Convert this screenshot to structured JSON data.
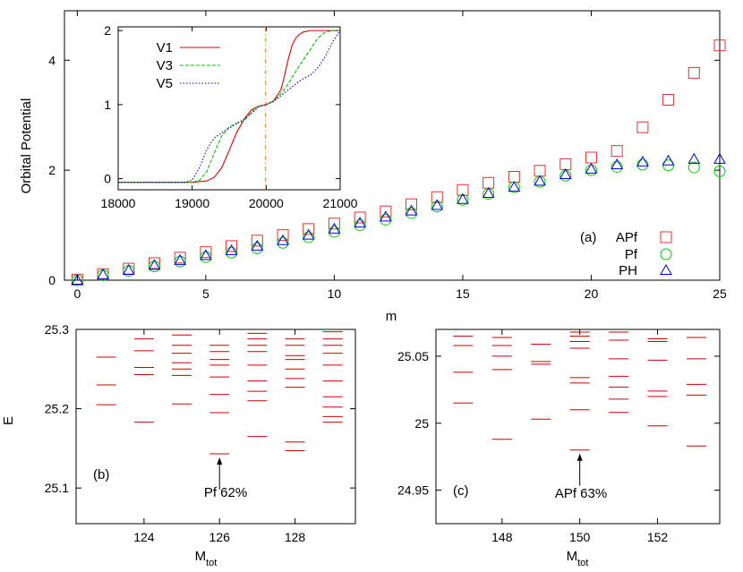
{
  "colors": {
    "APf": "#e8302f",
    "Pf": "#00cc00",
    "PH": "#0000dd",
    "V1": "#e00000",
    "V3": "#00c000",
    "V5": "#0000cc",
    "level": "#cc0000",
    "vline": "#ff8844"
  },
  "chart_data": [
    {
      "id": "main",
      "type": "scatter",
      "xlabel": "m",
      "ylabel": "Orbital Potential",
      "xlim": [
        -0.5,
        25
      ],
      "ylim": [
        0,
        4.9
      ],
      "xticks": [
        0,
        5,
        10,
        15,
        20,
        25
      ],
      "yticks": [
        0,
        2,
        4
      ],
      "annotation": "(a)",
      "legend_position": "bottom-right",
      "x": [
        0,
        1,
        2,
        3,
        4,
        5,
        6,
        7,
        8,
        9,
        10,
        11,
        12,
        13,
        14,
        15,
        16,
        17,
        18,
        19,
        20,
        21,
        22,
        23,
        24,
        25
      ],
      "series": [
        {
          "name": "APf",
          "marker": "square",
          "values": [
            0.01,
            0.11,
            0.21,
            0.31,
            0.41,
            0.51,
            0.62,
            0.72,
            0.82,
            0.93,
            1.03,
            1.14,
            1.25,
            1.38,
            1.51,
            1.64,
            1.77,
            1.88,
            1.99,
            2.11,
            2.23,
            2.35,
            2.78,
            3.28,
            3.77,
            4.27
          ]
        },
        {
          "name": "Pf",
          "marker": "circle",
          "values": [
            0.0,
            0.09,
            0.17,
            0.25,
            0.34,
            0.42,
            0.5,
            0.58,
            0.68,
            0.78,
            0.88,
            1.0,
            1.1,
            1.22,
            1.34,
            1.46,
            1.57,
            1.69,
            1.79,
            1.9,
            2.0,
            2.06,
            2.1,
            2.09,
            2.05,
            1.98
          ]
        },
        {
          "name": "PH",
          "marker": "triangle",
          "values": [
            0.0,
            0.1,
            0.18,
            0.27,
            0.36,
            0.45,
            0.54,
            0.62,
            0.72,
            0.82,
            0.93,
            1.04,
            1.15,
            1.26,
            1.36,
            1.47,
            1.58,
            1.69,
            1.8,
            1.92,
            2.02,
            2.1,
            2.15,
            2.17,
            2.2,
            2.2
          ]
        }
      ]
    },
    {
      "id": "inset",
      "type": "line",
      "xlim": [
        18000,
        21000
      ],
      "ylim": [
        -0.15,
        2.05
      ],
      "xticks": [
        18000,
        19000,
        20000,
        21000
      ],
      "yticks": [
        0,
        1,
        2
      ],
      "vline_x": 19990,
      "legend_position": "top-left",
      "series": [
        {
          "name": "V1",
          "dash": "solid",
          "x": [
            18000,
            19000,
            19200,
            19300,
            19400,
            19500,
            19600,
            19700,
            19800,
            19900,
            20000,
            20100,
            20200,
            20250,
            20300,
            20350,
            20400,
            20450,
            20500,
            20600,
            20700,
            20800,
            20900,
            21000
          ],
          "y": [
            -0.05,
            -0.05,
            -0.03,
            0.02,
            0.15,
            0.38,
            0.62,
            0.8,
            0.93,
            0.98,
            1.0,
            1.05,
            1.2,
            1.4,
            1.62,
            1.8,
            1.9,
            1.95,
            1.98,
            2.0,
            2.0,
            2.0,
            2.0,
            2.0
          ]
        },
        {
          "name": "V3",
          "dash": "dashed",
          "x": [
            18000,
            19000,
            19100,
            19200,
            19300,
            19400,
            19500,
            19600,
            19700,
            19800,
            19900,
            20000,
            20100,
            20200,
            20300,
            20400,
            20500,
            20600,
            20700,
            20800,
            20900,
            21000
          ],
          "y": [
            -0.05,
            -0.05,
            -0.02,
            0.1,
            0.35,
            0.58,
            0.7,
            0.74,
            0.78,
            0.9,
            0.98,
            1.0,
            1.05,
            1.15,
            1.28,
            1.45,
            1.6,
            1.75,
            1.9,
            1.98,
            2.0,
            2.0
          ]
        },
        {
          "name": "V5",
          "dash": "dotted",
          "x": [
            18000,
            18900,
            19000,
            19100,
            19200,
            19300,
            19400,
            19500,
            19600,
            19700,
            19800,
            19900,
            20000,
            20100,
            20200,
            20300,
            20400,
            20500,
            20600,
            20700,
            20800,
            20900,
            21000
          ],
          "y": [
            -0.05,
            -0.05,
            -0.02,
            0.15,
            0.4,
            0.55,
            0.62,
            0.68,
            0.75,
            0.8,
            0.88,
            0.97,
            1.0,
            1.04,
            1.12,
            1.2,
            1.28,
            1.35,
            1.4,
            1.5,
            1.65,
            1.85,
            2.0
          ]
        }
      ]
    },
    {
      "id": "b",
      "type": "scatter",
      "xlabel": "M",
      "xlabel_sub": "tot",
      "ylabel": "E",
      "xlim": [
        122.2,
        129.6
      ],
      "ylim": [
        25.055,
        25.3
      ],
      "xticks": [
        124,
        126,
        128
      ],
      "yticks": [
        25.1,
        25.2,
        25.3
      ],
      "annotation": "(b)",
      "arrow_label": "Pf 62%",
      "arrow_x": 126,
      "arrow_y": 25.143,
      "levels": [
        {
          "x": 123,
          "E": [
            25.205,
            25.23,
            25.265
          ]
        },
        {
          "x": 124,
          "E": [
            25.183,
            25.243,
            25.252,
            25.273,
            25.288
          ]
        },
        {
          "x": 125,
          "E": [
            25.206,
            25.242,
            25.25,
            25.258,
            25.27,
            25.28,
            25.293
          ]
        },
        {
          "x": 126,
          "E": [
            25.143,
            25.195,
            25.218,
            25.24,
            25.255,
            25.262,
            25.272,
            25.28
          ]
        },
        {
          "x": 127,
          "E": [
            25.165,
            25.21,
            25.222,
            25.235,
            25.255,
            25.272,
            25.28,
            25.288,
            25.295
          ]
        },
        {
          "x": 128,
          "E": [
            25.147,
            25.158,
            25.227,
            25.238,
            25.25,
            25.262,
            25.267,
            25.28,
            25.288
          ]
        },
        {
          "x": 129,
          "E": [
            25.183,
            25.19,
            25.202,
            25.215,
            25.235,
            25.255,
            25.27,
            25.28,
            25.288,
            25.297
          ]
        }
      ]
    },
    {
      "id": "c",
      "type": "scatter",
      "xlabel": "M",
      "xlabel_sub": "tot",
      "ylabel": "",
      "xlim": [
        146.3,
        153.6
      ],
      "ylim": [
        24.925,
        25.07
      ],
      "xticks": [
        148,
        150,
        152
      ],
      "yticks": [
        24.95,
        25,
        25.05
      ],
      "annotation": "(c)",
      "arrow_label": "APf 63%",
      "arrow_x": 150,
      "arrow_y": 24.98,
      "levels": [
        {
          "x": 147,
          "E": [
            25.015,
            25.038,
            25.058,
            25.065
          ]
        },
        {
          "x": 148,
          "E": [
            24.988,
            25.04,
            25.05,
            25.058,
            25.064
          ]
        },
        {
          "x": 149,
          "E": [
            25.003,
            25.044,
            25.046,
            25.059
          ]
        },
        {
          "x": 150,
          "E": [
            24.98,
            25.01,
            25.03,
            25.034,
            25.056,
            25.061,
            25.065,
            25.068
          ]
        },
        {
          "x": 151,
          "E": [
            25.008,
            25.018,
            25.027,
            25.035,
            25.048,
            25.062,
            25.068
          ]
        },
        {
          "x": 152,
          "E": [
            24.998,
            25.02,
            25.024,
            25.047,
            25.061,
            25.063
          ]
        },
        {
          "x": 153,
          "E": [
            24.983,
            25.021,
            25.029,
            25.048,
            25.064
          ]
        }
      ]
    }
  ]
}
